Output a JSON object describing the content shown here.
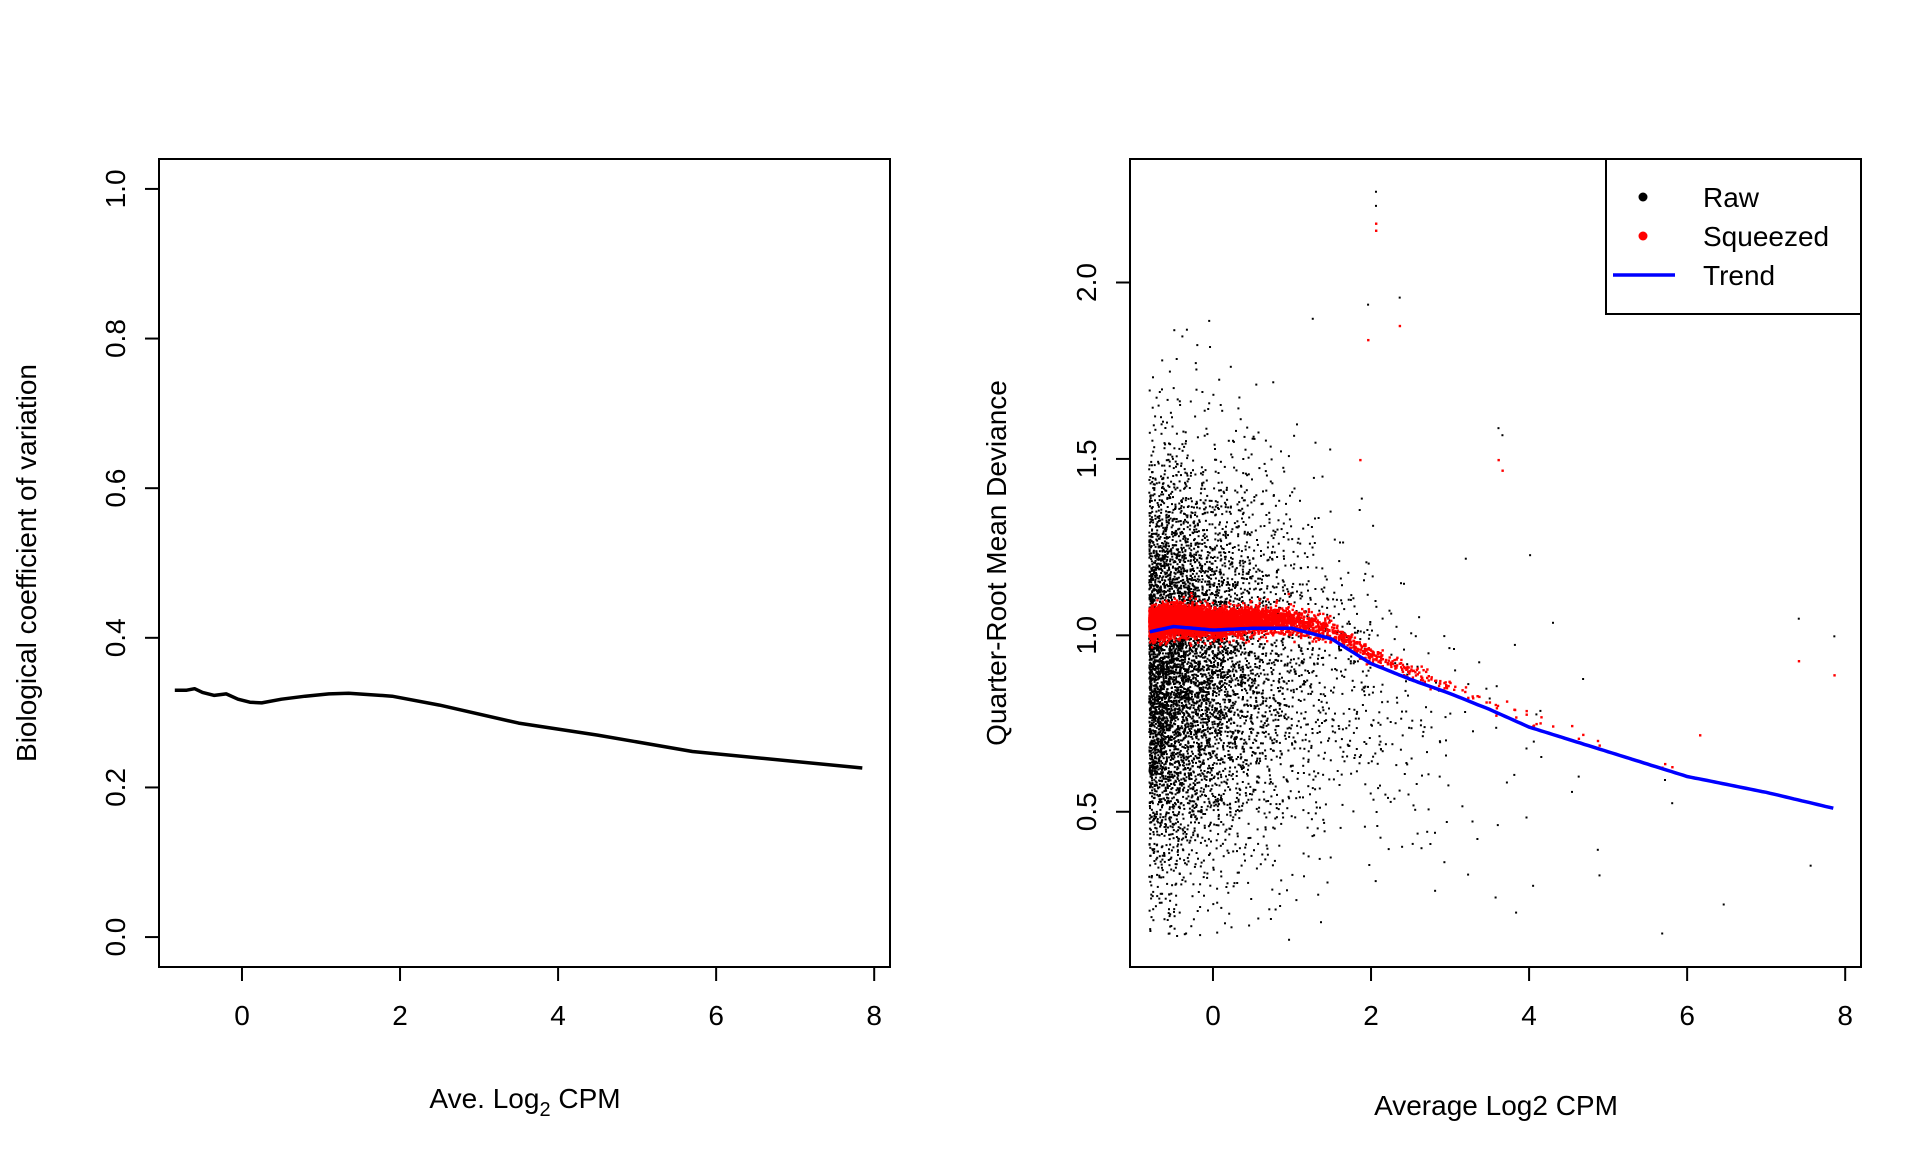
{
  "chart_data": [
    {
      "type": "line",
      "xlabel": "Ave. Log",
      "xlabel_subscript": "2",
      "xlabel_suffix": " CPM",
      "ylabel": "Biological coefficient of variation",
      "xlim": [
        -1.05,
        8.2
      ],
      "ylim": [
        -0.04,
        1.04
      ],
      "xticks": [
        "0",
        "2",
        "4",
        "6",
        "8"
      ],
      "yticks": [
        "0.0",
        "0.2",
        "0.4",
        "0.6",
        "0.8",
        "1.0"
      ],
      "grid": false,
      "series": [
        {
          "color": "#000000",
          "x": [
            -0.85,
            -0.7,
            -0.6,
            -0.5,
            -0.35,
            -0.2,
            -0.05,
            0.1,
            0.25,
            0.5,
            0.8,
            1.1,
            1.35,
            1.9,
            2.5,
            3.5,
            4.5,
            5.7,
            7.85
          ],
          "y": [
            0.33,
            0.33,
            0.332,
            0.327,
            0.323,
            0.325,
            0.318,
            0.314,
            0.313,
            0.318,
            0.322,
            0.325,
            0.326,
            0.322,
            0.31,
            0.286,
            0.27,
            0.248,
            0.226
          ]
        }
      ]
    },
    {
      "type": "scatter",
      "xlabel": "Average Log2 CPM",
      "ylabel": "Quarter-Root Mean Deviance",
      "xlim": [
        -1.05,
        8.2
      ],
      "ylim": [
        0.06,
        2.35
      ],
      "xticks": [
        "0",
        "2",
        "4",
        "6",
        "8"
      ],
      "yticks": [
        "0.5",
        "1.0",
        "1.5",
        "2.0"
      ],
      "grid": false,
      "legend": {
        "position": "top-right",
        "entries": [
          {
            "label": "Raw",
            "color": "#000000",
            "kind": "point"
          },
          {
            "label": "Squeezed",
            "color": "#ff0000",
            "kind": "point"
          },
          {
            "label": "Trend",
            "color": "#0000ff",
            "kind": "line"
          }
        ]
      },
      "trend": {
        "name": "Trend",
        "color": "#0000ff",
        "x": [
          -0.8,
          -0.5,
          0,
          0.5,
          1.0,
          1.5,
          2.0,
          2.5,
          3.0,
          3.5,
          4.0,
          5.0,
          6.0,
          7.0,
          7.85
        ],
        "y": [
          1.01,
          1.025,
          1.015,
          1.02,
          1.02,
          0.99,
          0.92,
          0.875,
          0.835,
          0.79,
          0.74,
          0.67,
          0.6,
          0.555,
          0.51
        ]
      },
      "raw_outliers": {
        "color": "#000000",
        "x": [
          2.05,
          2.05,
          1.95,
          2.35,
          1.25,
          3.6,
          3.65,
          7.4,
          7.85,
          7.55,
          6.45,
          4.0,
          0.75,
          0.95,
          -0.4,
          -0.05
        ],
        "y": [
          2.26,
          2.22,
          1.94,
          1.96,
          1.9,
          1.59,
          1.57,
          1.05,
          1.0,
          0.35,
          0.24,
          1.23,
          1.72,
          0.14,
          1.85,
          1.82
        ]
      },
      "squeezed_outliers": {
        "color": "#ff0000",
        "x": [
          2.05,
          2.05,
          1.95,
          2.35,
          3.6,
          3.65,
          7.4,
          7.85,
          6.15,
          1.85
        ],
        "y": [
          2.17,
          2.15,
          1.84,
          1.88,
          1.5,
          1.47,
          0.93,
          0.89,
          0.72,
          1.5
        ]
      }
    }
  ]
}
